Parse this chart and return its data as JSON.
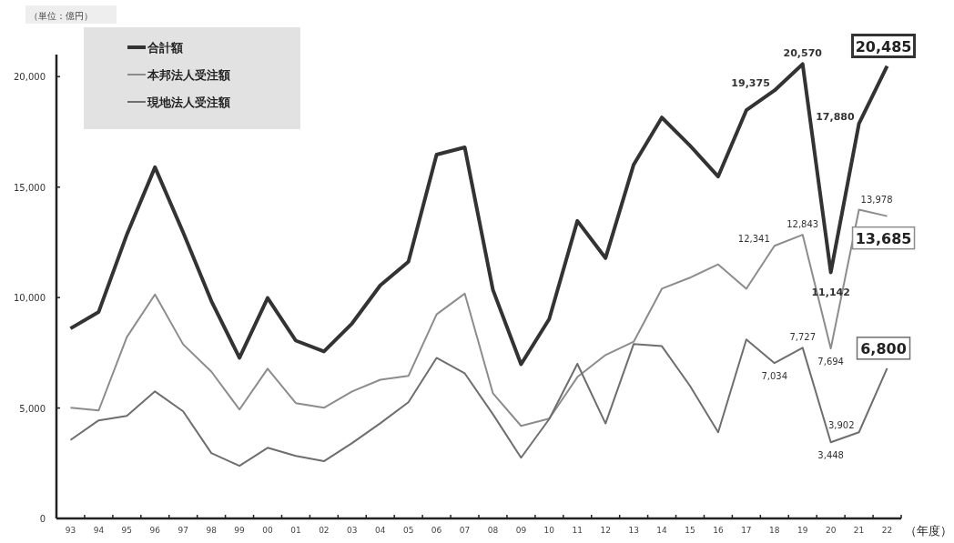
{
  "chart_data": {
    "type": "line",
    "xlabel": "（年度）",
    "annotations": [
      "（単位：億円）"
    ],
    "categories": [
      "93",
      "94",
      "95",
      "96",
      "97",
      "98",
      "99",
      "00",
      "01",
      "02",
      "03",
      "04",
      "05",
      "06",
      "07",
      "08",
      "09",
      "10",
      "11",
      "12",
      "13",
      "14",
      "15",
      "16",
      "17",
      "18",
      "19",
      "20",
      "21",
      "22"
    ],
    "ylim": [
      0,
      21000
    ],
    "yticks": [
      0,
      {
        "value": 5000,
        "label": "5,000"
      },
      {
        "value": 10000,
        "label": "10,000"
      },
      {
        "value": 15000,
        "label": "15,000"
      },
      {
        "value": 20000,
        "label": "20,000"
      }
    ],
    "grid": false,
    "legend": "top left",
    "line_style": "solid",
    "series": [
      {
        "name": "合計額",
        "color": "#333333",
        "values": [
          8600,
          9350,
          12850,
          15900,
          12950,
          9850,
          7270,
          9980,
          8050,
          7560,
          8830,
          10550,
          11620,
          16470,
          16800,
          10350,
          6980,
          9030,
          13470,
          11790,
          16020,
          18150,
          16880,
          15480,
          18480,
          19375,
          20570,
          11142,
          17880,
          20485
        ],
        "value_labels": [
          null,
          null,
          null,
          null,
          null,
          null,
          null,
          null,
          null,
          null,
          null,
          null,
          null,
          null,
          null,
          null,
          null,
          null,
          null,
          null,
          null,
          null,
          null,
          null,
          null,
          "19,375",
          "20,570",
          "11,142",
          "17,880",
          "20,485"
        ]
      },
      {
        "name": "本邦法人受注額",
        "color": "#8c8c8c",
        "values": [
          5010,
          4890,
          8210,
          10140,
          7880,
          6650,
          4930,
          6780,
          5220,
          5010,
          5750,
          6280,
          6450,
          9240,
          10180,
          5670,
          4190,
          4520,
          6400,
          7400,
          8000,
          10400,
          10900,
          11500,
          10400,
          12341,
          12843,
          7694,
          13978,
          13685
        ],
        "value_labels": [
          null,
          null,
          null,
          null,
          null,
          null,
          null,
          null,
          null,
          null,
          null,
          null,
          null,
          null,
          null,
          null,
          null,
          null,
          null,
          null,
          null,
          null,
          null,
          null,
          null,
          "12,341",
          "12,843",
          "7,694",
          "13,978",
          "13,685"
        ]
      },
      {
        "name": "現地法人受注額",
        "color": "#6e6e6e",
        "values": [
          3550,
          4440,
          4640,
          5750,
          4850,
          2960,
          2380,
          3200,
          2830,
          2590,
          3410,
          4310,
          5260,
          7270,
          6570,
          4720,
          2750,
          4500,
          7000,
          4300,
          7900,
          7800,
          6000,
          3900,
          8100,
          7034,
          7727,
          3448,
          3902,
          6800
        ],
        "value_labels": [
          null,
          null,
          null,
          null,
          null,
          null,
          null,
          null,
          null,
          null,
          null,
          null,
          null,
          null,
          null,
          null,
          null,
          null,
          null,
          null,
          null,
          null,
          null,
          null,
          null,
          "7,034",
          "7,727",
          "3,448",
          "3,902",
          "6,800"
        ]
      }
    ]
  }
}
